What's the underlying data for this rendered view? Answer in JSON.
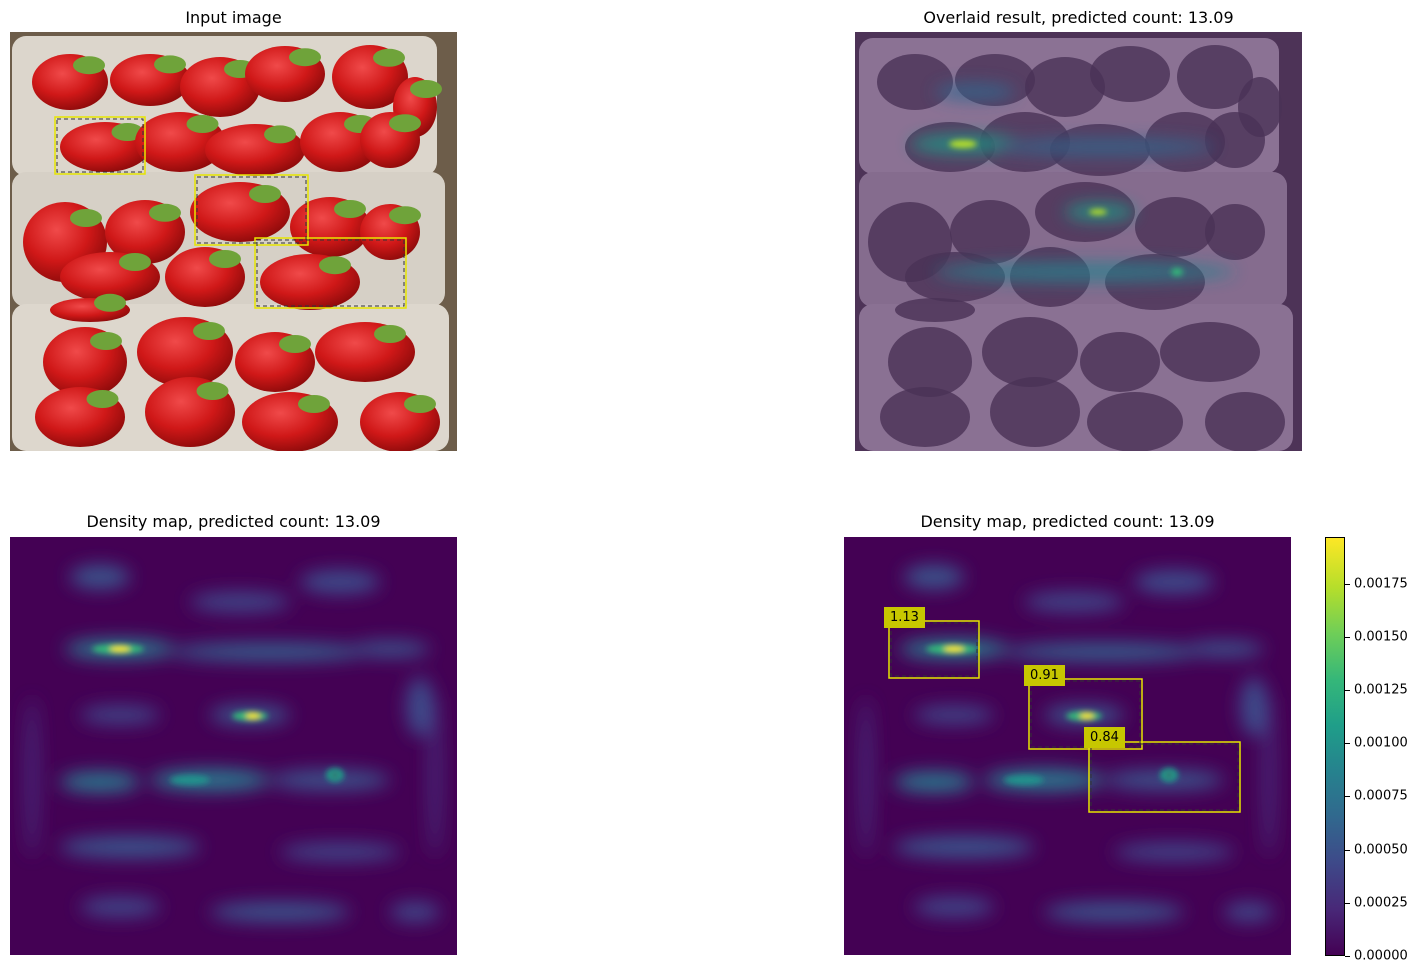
{
  "panels": {
    "input": {
      "title": "Input image"
    },
    "overlay": {
      "title": "Overlaid result, predicted count: 13.09"
    },
    "density_left": {
      "title": "Density map, predicted count: 13.09"
    },
    "density_right": {
      "title": "Density map, predicted count: 13.09"
    }
  },
  "exemplar_boxes": [
    {
      "score": "1.13"
    },
    {
      "score": "0.91"
    },
    {
      "score": "0.84"
    }
  ],
  "colorbar": {
    "colormap": "viridis",
    "ticks": [
      "0.00000",
      "0.00025",
      "0.00050",
      "0.00075",
      "0.00100",
      "0.00125",
      "0.00150",
      "0.00175"
    ]
  },
  "colors": {
    "box": "#e6e600",
    "label_bg": "#c7c700",
    "density_bg": "#440154"
  }
}
